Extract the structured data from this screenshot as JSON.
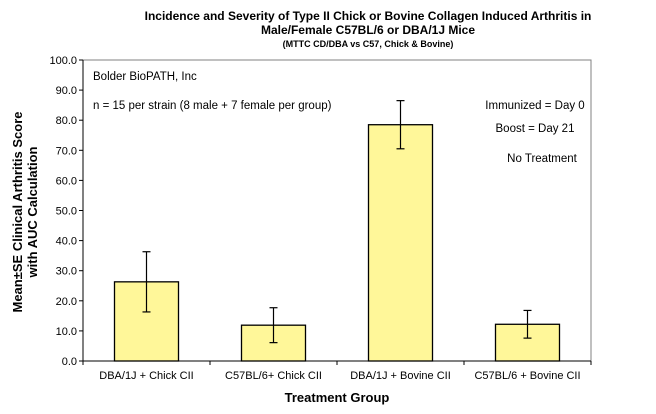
{
  "chart_data": {
    "type": "bar",
    "title_line1": "Incidence and Severity of Type II Chick or Bovine Collagen Induced Arthritis in",
    "title_line2": "Male/Female C57BL/6 or DBA/1J Mice",
    "subtitle": "(MTTC CD/DBA vs C57, Chick & Bovine)",
    "xlabel": "Treatment Group",
    "ylabel_line1": "Mean±SE Clinical Arthritis Score",
    "ylabel_line2": "with AUC Calculation",
    "ylim": [
      0,
      100
    ],
    "yticks": [
      "0.0",
      "10.0",
      "20.0",
      "30.0",
      "40.0",
      "50.0",
      "60.0",
      "70.0",
      "80.0",
      "90.0",
      "100.0"
    ],
    "categories": [
      "DBA/1J + Chick CII",
      "C57BL/6+ Chick CII",
      "DBA/1J + Bovine CII",
      "C57BL/6 + Bovine CII"
    ],
    "values": [
      26.3,
      11.9,
      78.5,
      12.2
    ],
    "errors": [
      10.0,
      5.8,
      8.0,
      4.6
    ],
    "bar_color": "#fff799",
    "grid": false,
    "annotations": {
      "company": "Bolder BioPATH, Inc",
      "n": "n = 15 per strain (8 male + 7 female per group)",
      "immunized": "Immunized = Day 0",
      "boost": "Boost = Day 21",
      "treatment": "No Treatment"
    }
  }
}
